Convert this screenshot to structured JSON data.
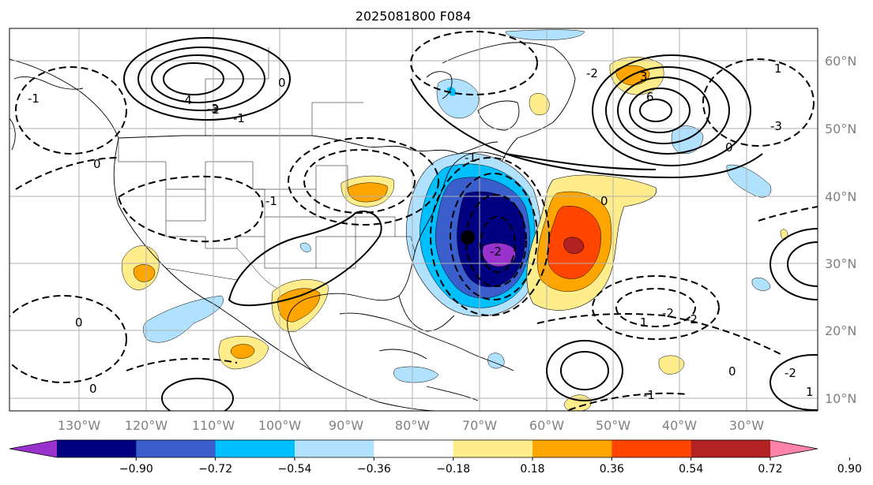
{
  "title": "2025081800 F084",
  "lat_labels": [
    "60°N",
    "50°N",
    "40°N",
    "30°N",
    "20°N",
    "10°N"
  ],
  "lat_values": [
    60,
    50,
    40,
    30,
    20,
    10
  ],
  "lon_labels": [
    "130°W",
    "120°W",
    "110°W",
    "100°W",
    "90°W",
    "80°W",
    "70°W",
    "60°W",
    "50°W",
    "40°W",
    "30°W"
  ],
  "lon_values": [
    -130,
    -120,
    -110,
    -100,
    -90,
    -80,
    -70,
    -60,
    -50,
    -40,
    -30
  ],
  "colorbar": {
    "ticks": [
      "−0.90",
      "−0.72",
      "−0.54",
      "−0.36",
      "−0.18",
      "0.18",
      "0.36",
      "0.54",
      "0.72",
      "0.90"
    ],
    "colors": [
      "#9932cc",
      "#000080",
      "#3a5fcd",
      "#00bfff",
      "#b0e2ff",
      "#ffffff",
      "#ffec8b",
      "#ffa500",
      "#ff4500",
      "#b22222",
      "#ff82ab"
    ]
  },
  "contour_labels": [
    "-2",
    "-3",
    "-4",
    "-1",
    "0",
    "-1",
    "0",
    "-2",
    "-1",
    "0",
    "1",
    "-2",
    "3",
    "-2",
    "1",
    "6",
    "0",
    "-2",
    "-1",
    "0",
    "-2",
    "0",
    "-1",
    "0",
    "-3",
    "1"
  ]
}
